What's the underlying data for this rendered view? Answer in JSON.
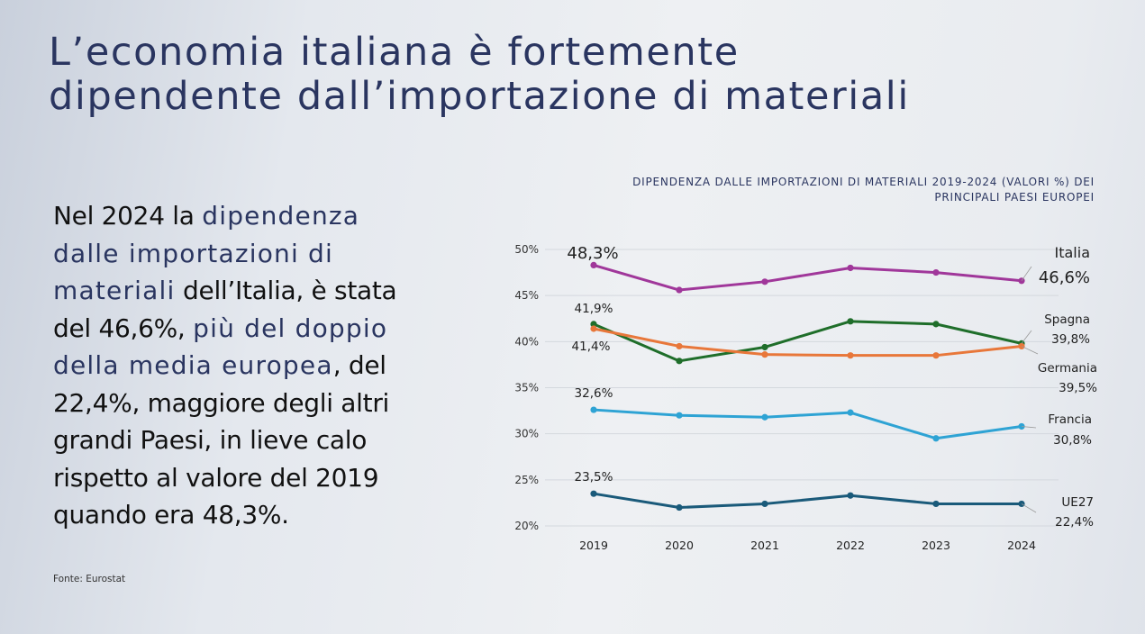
{
  "title": {
    "lines": [
      "L’economia italiana è fortemente",
      "dipendente dall’importazione di materiali"
    ]
  },
  "body": {
    "lines": [
      [
        {
          "t": "Nel 2024 la ",
          "hl": false
        },
        {
          "t": "dipendenza",
          "hl": true
        }
      ],
      [
        {
          "t": "dalle importazioni di",
          "hl": true
        }
      ],
      [
        {
          "t": "materiali",
          "hl": true
        },
        {
          "t": " dell’Italia, è stata",
          "hl": false
        }
      ],
      [
        {
          "t": "del 46,6%, ",
          "hl": false
        },
        {
          "t": "più del doppio",
          "hl": true
        }
      ],
      [
        {
          "t": "della media europea",
          "hl": true
        },
        {
          "t": ", del",
          "hl": false
        }
      ],
      [
        {
          "t": "22,4%, maggiore degli altri",
          "hl": false
        }
      ],
      [
        {
          "t": "grandi Paesi, in lieve calo",
          "hl": false
        }
      ],
      [
        {
          "t": "rispetto al valore del 2019",
          "hl": false
        }
      ],
      [
        {
          "t": "quando era 48,3%.",
          "hl": false
        }
      ]
    ]
  },
  "source": "Fonte: Eurostat",
  "chart_data": {
    "type": "line",
    "title_lines": [
      "DIPENDENZA DALLE IMPORTAZIONI DI MATERIALI 2019-2024 (VALORI %) DEI",
      "PRINCIPALI PAESI EUROPEI"
    ],
    "categories": [
      "2019",
      "2020",
      "2021",
      "2022",
      "2023",
      "2024"
    ],
    "ylim": [
      20,
      50
    ],
    "yticks": [
      50,
      45,
      40,
      35,
      30,
      25,
      20
    ],
    "ytick_labels": [
      "50%",
      "45%",
      "40%",
      "35%",
      "30%",
      "25%",
      "20%"
    ],
    "grid": true,
    "series": [
      {
        "name": "Italia",
        "color": "#a0379a",
        "values": [
          48.3,
          45.6,
          46.5,
          48.0,
          47.5,
          46.6
        ],
        "start_label": "48,3%",
        "end_label": "46,6%"
      },
      {
        "name": "Spagna",
        "color": "#1f6e2a",
        "values": [
          41.9,
          37.9,
          39.4,
          42.2,
          41.9,
          39.8
        ],
        "start_label": "41,9%",
        "end_label": "39,8%"
      },
      {
        "name": "Germania",
        "color": "#e8773a",
        "values": [
          41.4,
          39.5,
          38.6,
          38.5,
          38.5,
          39.5
        ],
        "start_label": "41,4%",
        "end_label": "39,5%"
      },
      {
        "name": "Francia",
        "color": "#2ea3d4",
        "values": [
          32.6,
          32.0,
          31.8,
          32.3,
          29.5,
          30.8
        ],
        "start_label": "32,6%",
        "end_label": "30,8%"
      },
      {
        "name": "UE27",
        "color": "#1a5a7a",
        "values": [
          23.5,
          22.0,
          22.4,
          23.3,
          22.4,
          22.4
        ],
        "start_label": "23,5%",
        "end_label": "22,4%"
      }
    ]
  }
}
